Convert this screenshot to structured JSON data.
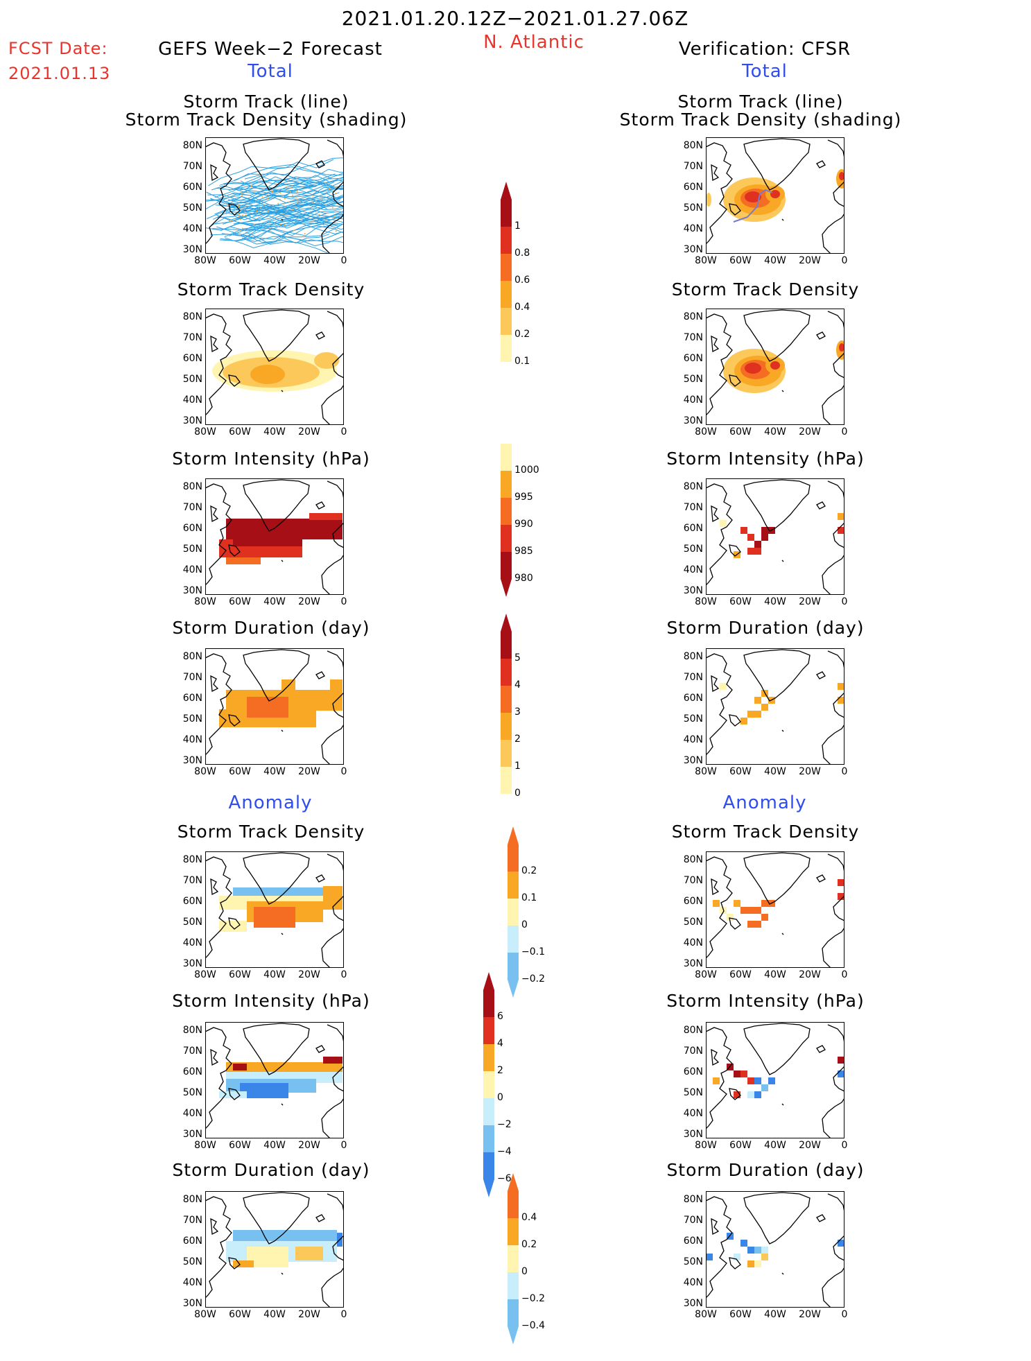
{
  "header": {
    "date_range": "2021.01.20.12Z−2021.01.27.06Z",
    "region": "N. Atlantic",
    "fcst_label": "FCST Date:",
    "fcst_date": "2021.01.13",
    "left_title": "GEFS Week−2 Forecast",
    "right_title": "Verification: CFSR",
    "total_label": "Total",
    "anomaly_label": "Anomaly"
  },
  "panels": {
    "track_line": "Storm Track (line)",
    "track_density_shading": "Storm Track Density (shading)",
    "track_density": "Storm Track Density",
    "intensity": "Storm Intensity (hPa)",
    "duration": "Storm Duration (day)"
  },
  "axes": {
    "lat_ticks": [
      "80N",
      "70N",
      "60N",
      "50N",
      "40N",
      "30N"
    ],
    "lon_ticks": [
      "80W",
      "60W",
      "40W",
      "20W",
      "0"
    ]
  },
  "colorbars": {
    "density_total": [
      "1",
      "0.8",
      "0.6",
      "0.4",
      "0.2",
      "0.1"
    ],
    "intensity_total": [
      "1000",
      "995",
      "990",
      "985",
      "980"
    ],
    "duration_total": [
      "5",
      "4",
      "3",
      "2",
      "1",
      "0"
    ],
    "density_anom": [
      "0.2",
      "0.1",
      "0",
      "−0.1",
      "−0.2"
    ],
    "intensity_anom": [
      "6",
      "4",
      "2",
      "0",
      "−2",
      "−4",
      "−6"
    ],
    "duration_anom": [
      "0.4",
      "0.2",
      "0",
      "−0.2",
      "−0.4"
    ]
  },
  "colors": {
    "title_red": "#e8342c",
    "title_blue": "#2f4cf0",
    "dark_red": "#a50f15",
    "red": "#e03020",
    "orange_red": "#f46d22",
    "orange": "#f9a825",
    "light_orange": "#fcc85a",
    "pale_yellow": "#fff5b0",
    "light_blue": "#c8eefc",
    "mid_blue": "#78c0f0",
    "blue": "#3a86e8",
    "dark_blue": "#1560d0",
    "track_line": "#2aa0e0"
  }
}
